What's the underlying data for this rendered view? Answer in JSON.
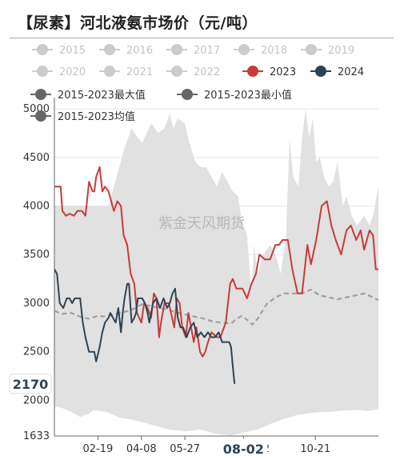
{
  "title": "【尿素】河北液氨市场价（元/吨）",
  "watermark": "紫金天风期货",
  "legend": [
    {
      "label": "2015",
      "color": "#cccccc",
      "active": false
    },
    {
      "label": "2016",
      "color": "#cccccc",
      "active": false
    },
    {
      "label": "2017",
      "color": "#cccccc",
      "active": false
    },
    {
      "label": "2018",
      "color": "#cccccc",
      "active": false
    },
    {
      "label": "2019",
      "color": "#cccccc",
      "active": false
    },
    {
      "label": "2020",
      "color": "#cccccc",
      "active": false
    },
    {
      "label": "2021",
      "color": "#cccccc",
      "active": false
    },
    {
      "label": "2022",
      "color": "#cccccc",
      "active": false
    },
    {
      "label": "2023",
      "color": "#c93a3a",
      "active": true
    },
    {
      "label": "2024",
      "color": "#2e4354",
      "active": true
    },
    {
      "label": "2015-2023最大值",
      "color": "#666666",
      "active": true
    },
    {
      "label": "2015-2023最小值",
      "color": "#666666",
      "active": true
    },
    {
      "label": "2015-2023均值",
      "color": "#666666",
      "active": true
    }
  ],
  "chart_data": {
    "type": "line",
    "title": "【尿素】河北液氨市场价（元/吨）",
    "y_ticks": [
      "5000",
      "4500",
      "4000",
      "3500",
      "3000",
      "2500",
      "2000"
    ],
    "y_min_label": "1633",
    "x_tick_labels": [
      "02-19",
      "04-08",
      "05-27",
      "08-02",
      "10-21"
    ],
    "x_tick_labels_partial": [
      "2"
    ],
    "pointer_y_label": "2170",
    "pointer_x_label": "08-02",
    "ylim": [
      1633,
      5050
    ],
    "x_day_range": [
      1,
      366
    ],
    "x_tick_days": [
      50,
      99,
      148,
      214,
      295
    ],
    "grid": true,
    "series": [
      {
        "name": "2015-2023最大值",
        "kind": "band-top",
        "color": "#e1e1e1",
        "days": [
          1,
          30,
          62,
          80,
          88,
          95,
          100,
          110,
          118,
          125,
          131,
          135,
          140,
          148,
          153,
          160,
          166,
          172,
          178,
          184,
          190,
          196,
          202,
          208,
          212,
          218,
          223,
          226,
          230,
          236,
          244,
          250,
          256,
          262,
          266,
          270,
          276,
          280,
          284,
          288,
          292,
          296,
          300,
          305,
          310,
          315,
          320,
          326,
          330,
          336,
          342,
          350,
          356,
          360,
          366
        ],
        "values": [
          4000,
          4000,
          4000,
          4600,
          4800,
          4700,
          4650,
          4850,
          4750,
          4800,
          4950,
          4800,
          4900,
          4850,
          4650,
          4450,
          4400,
          4400,
          4300,
          4200,
          4350,
          4250,
          4150,
          4100,
          3850,
          3700,
          3100,
          3600,
          3300,
          3500,
          3600,
          3500,
          3300,
          3700,
          4700,
          4300,
          4200,
          4700,
          5000,
          4700,
          4900,
          4450,
          4500,
          4300,
          4200,
          4250,
          4450,
          4000,
          4100,
          3900,
          3800,
          3900,
          3800,
          3900,
          4200
        ]
      },
      {
        "name": "2015-2023最小值",
        "kind": "band-bottom",
        "color": "#e1e1e1",
        "days": [
          1,
          10,
          20,
          30,
          40,
          45,
          60,
          75,
          90,
          110,
          130,
          150,
          165,
          180,
          200,
          215,
          230,
          245,
          260,
          275,
          290,
          300,
          310,
          320,
          335,
          345,
          355,
          366
        ],
        "values": [
          1940,
          1920,
          1880,
          1830,
          1860,
          1900,
          1880,
          1820,
          1800,
          1750,
          1700,
          1680,
          1700,
          1660,
          1640,
          1670,
          1700,
          1760,
          1810,
          1850,
          1870,
          1880,
          1880,
          1890,
          1900,
          1900,
          1890,
          1910
        ]
      },
      {
        "name": "2015-2023均值",
        "kind": "dashed",
        "color": "#a0a0a0",
        "days": [
          1,
          10,
          20,
          30,
          40,
          50,
          60,
          70,
          80,
          90,
          100,
          110,
          120,
          130,
          140,
          150,
          160,
          170,
          180,
          190,
          200,
          205,
          212,
          218,
          224,
          230,
          240,
          250,
          260,
          270,
          280,
          290,
          300,
          310,
          320,
          330,
          340,
          350,
          360,
          366
        ],
        "values": [
          2920,
          2890,
          2900,
          2860,
          2840,
          2870,
          2860,
          2890,
          2910,
          2940,
          2990,
          2970,
          2950,
          2930,
          2900,
          2880,
          2860,
          2840,
          2810,
          2800,
          2790,
          2830,
          2870,
          2830,
          2780,
          2840,
          2990,
          3060,
          3100,
          3100,
          3100,
          3140,
          3080,
          3060,
          3040,
          3060,
          3080,
          3100,
          3060,
          3030
        ]
      },
      {
        "name": "2023",
        "kind": "line",
        "color": "#c93a3a",
        "days": [
          1,
          8,
          10,
          14,
          18,
          23,
          27,
          32,
          36,
          40,
          44,
          46,
          48,
          52,
          55,
          58,
          62,
          68,
          72,
          76,
          79,
          83,
          87,
          91,
          94,
          99,
          102,
          106,
          110,
          113,
          116,
          119,
          121,
          125,
          130,
          136,
          139,
          142,
          145,
          149,
          152,
          155,
          158,
          161,
          165,
          168,
          171,
          174,
          178,
          184,
          188,
          194,
          199,
          202,
          206,
          213,
          218,
          223,
          228,
          232,
          238,
          244,
          250,
          254,
          258,
          264,
          269,
          275,
          280,
          286,
          290,
          296,
          302,
          308,
          313,
          318,
          324,
          330,
          335,
          341,
          346,
          350,
          356,
          360,
          363,
          366
        ],
        "values": [
          4200,
          4200,
          3950,
          3900,
          3920,
          3900,
          3950,
          3950,
          3900,
          4250,
          4150,
          4150,
          4300,
          4400,
          4150,
          4200,
          4150,
          3950,
          4050,
          4000,
          3700,
          3600,
          3300,
          3200,
          2900,
          2800,
          3000,
          2950,
          2850,
          3100,
          3050,
          2650,
          2800,
          3000,
          3000,
          2750,
          3050,
          3000,
          2750,
          2650,
          2900,
          2750,
          2600,
          2750,
          2500,
          2450,
          2500,
          2600,
          2700,
          2650,
          2650,
          2800,
          3200,
          3250,
          3150,
          3150,
          3050,
          3200,
          3300,
          3500,
          3450,
          3450,
          3600,
          3600,
          3650,
          3650,
          3350,
          3100,
          3100,
          3600,
          3400,
          3650,
          4000,
          4050,
          3800,
          3650,
          3500,
          3750,
          3800,
          3650,
          3750,
          3550,
          3750,
          3700,
          3350,
          3350
        ]
      },
      {
        "name": "2024",
        "kind": "line",
        "color": "#2e4354",
        "days": [
          1,
          4,
          7,
          11,
          15,
          18,
          21,
          24,
          27,
          30,
          33,
          36,
          40,
          44,
          46,
          48,
          52,
          55,
          58,
          62,
          64,
          67,
          70,
          73,
          76,
          78,
          80,
          83,
          85,
          88,
          91,
          93,
          95,
          98,
          100,
          103,
          106,
          108,
          112,
          116,
          120,
          124,
          128,
          131,
          134,
          137,
          140,
          143,
          146,
          150,
          154,
          158,
          162,
          166,
          170,
          174,
          178,
          182,
          186,
          190,
          194,
          198,
          200,
          202,
          204
        ],
        "values": [
          3350,
          3300,
          3000,
          2950,
          3050,
          3050,
          3000,
          3050,
          3050,
          3050,
          2800,
          2650,
          2500,
          2500,
          2500,
          2400,
          2550,
          2700,
          2800,
          2850,
          2900,
          2850,
          2800,
          2950,
          2700,
          2900,
          3050,
          3200,
          3200,
          2800,
          2850,
          2900,
          3050,
          3050,
          3050,
          3000,
          2900,
          2800,
          3000,
          3050,
          2950,
          3050,
          2950,
          3000,
          3100,
          3150,
          2850,
          2750,
          2750,
          2650,
          2750,
          2800,
          2650,
          2700,
          2650,
          2700,
          2650,
          2650,
          2700,
          2600,
          2600,
          2600,
          2550,
          2350,
          2170
        ]
      }
    ]
  }
}
